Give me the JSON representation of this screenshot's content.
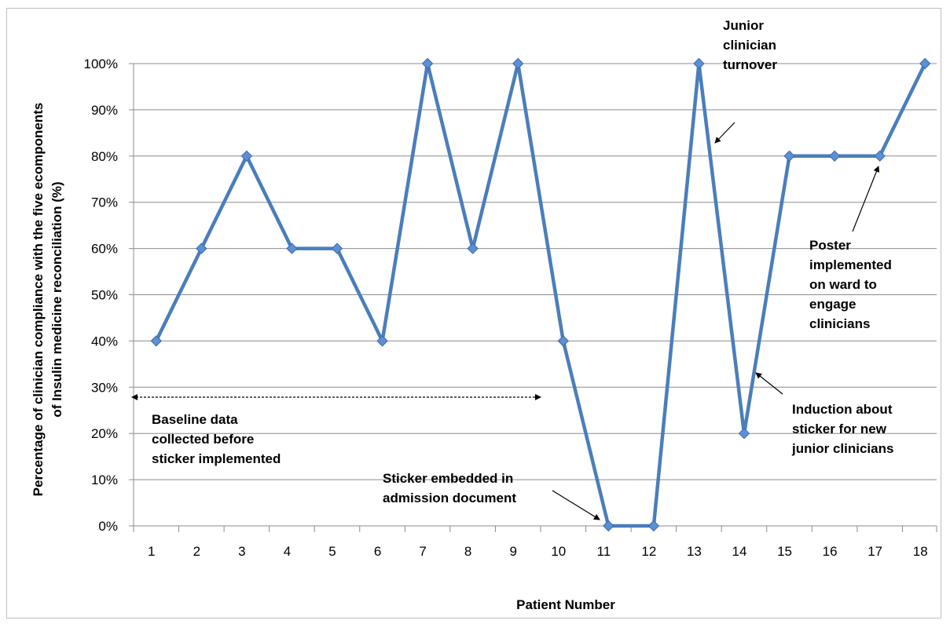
{
  "chart_data": {
    "type": "line",
    "title": "",
    "xlabel": "Patient Number",
    "ylabel_lines": [
      "Percentage of  clinician compliance with the five ecomponents",
      "of Insulin medicine reconciliation (%)"
    ],
    "categories": [
      "1",
      "2",
      "3",
      "4",
      "5",
      "6",
      "7",
      "8",
      "9",
      "10",
      "11",
      "12",
      "13",
      "14",
      "15",
      "16",
      "17",
      "18"
    ],
    "series": [
      {
        "values": [
          40,
          60,
          80,
          60,
          60,
          40,
          100,
          60,
          100,
          40,
          0,
          0,
          100,
          20,
          80,
          80,
          80,
          100
        ]
      }
    ],
    "ylim": [
      0,
      100
    ],
    "yticks": [
      0,
      10,
      20,
      30,
      40,
      50,
      60,
      70,
      80,
      90,
      100
    ],
    "ytick_suffix": "%",
    "grid": true,
    "legend": "none",
    "line_color": "#4a7ebb",
    "marker_color": "#5b8fd6",
    "annotations": [
      {
        "lines": [
          "Junior",
          "clinician",
          "turnover"
        ]
      },
      {
        "lines": [
          "Poster",
          "implemented",
          "on ward to",
          "engage",
          "clinicians"
        ]
      },
      {
        "lines": [
          "Induction about",
          "sticker for new",
          "junior clinicians"
        ]
      },
      {
        "lines": [
          "Sticker embedded in",
          "admission document"
        ]
      },
      {
        "lines": [
          "Baseline data",
          "collected before",
          "sticker implemented"
        ]
      }
    ]
  }
}
